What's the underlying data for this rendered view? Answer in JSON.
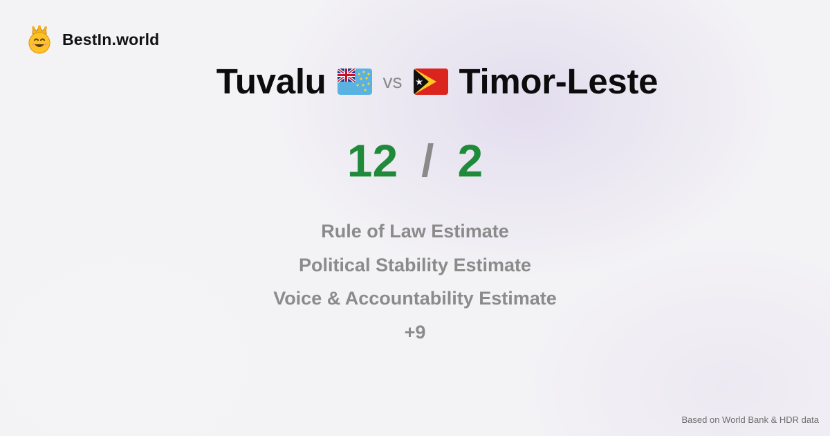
{
  "brand": {
    "name": "BestIn.world",
    "icon": "crowned-smiley-icon"
  },
  "comparison": {
    "left": {
      "name": "Tuvalu",
      "flag": "tuvalu-flag-icon"
    },
    "vs_label": "vs",
    "right": {
      "name": "Timor-Leste",
      "flag": "timor-leste-flag-icon"
    }
  },
  "score": {
    "left": "12",
    "separator": "/",
    "right": "2",
    "color": "#1f8a3a"
  },
  "metrics": [
    "Rule of Law Estimate",
    "Political Stability Estimate",
    "Voice & Accountability Estimate",
    "+9"
  ],
  "footer": {
    "source": "Based on World Bank & HDR data"
  }
}
